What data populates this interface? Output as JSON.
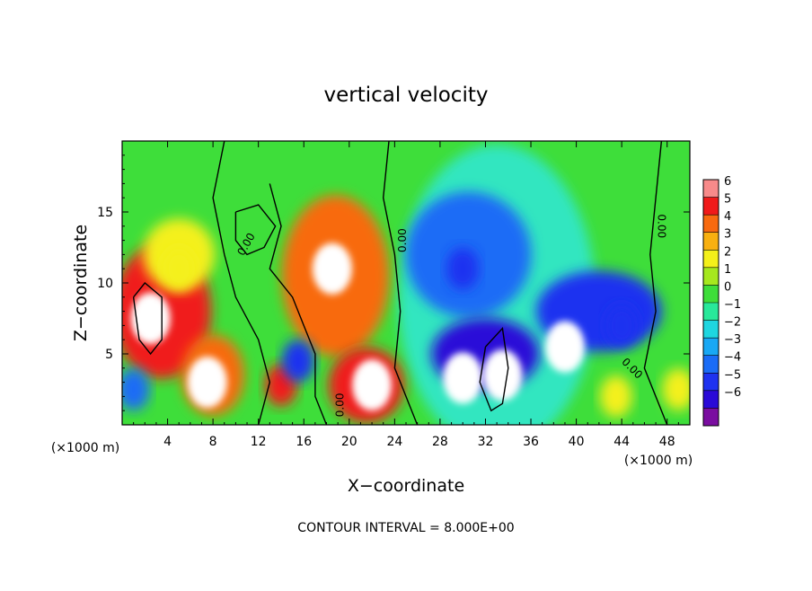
{
  "chart_data": {
    "type": "heatmap",
    "title": "vertical velocity",
    "xlabel": "X−coordinate",
    "ylabel": "Z−coordinate",
    "x_units": "(×1000 m)",
    "y_units": "(×1000 m)",
    "footer": "CONTOUR INTERVAL = 8.000E+00",
    "xlim": [
      0,
      50
    ],
    "ylim": [
      0,
      20
    ],
    "x_ticks": [
      4,
      8,
      12,
      16,
      20,
      24,
      28,
      32,
      36,
      40,
      44,
      48
    ],
    "x_tick_labels": [
      "4",
      "8",
      "12",
      "16",
      "20",
      "24",
      "28",
      "32",
      "36",
      "40",
      "44",
      "48"
    ],
    "y_ticks": [
      5,
      10,
      15
    ],
    "y_tick_labels": [
      "5",
      "10",
      "15"
    ],
    "colorbar": {
      "levels": [
        -6,
        -5,
        -4,
        -3,
        -2,
        -1,
        0,
        1,
        2,
        3,
        4,
        5,
        6
      ],
      "labels": [
        "6",
        "5",
        "4",
        "3",
        "2",
        "1",
        "0",
        "−1",
        "−2",
        "−3",
        "−4",
        "−5",
        "−6"
      ],
      "colors": [
        "#7a0da0",
        "#2a0ad8",
        "#1e32f0",
        "#1a6cf6",
        "#19a8f4",
        "#1ed6e0",
        "#28e89a",
        "#3ede3a",
        "#a6e81e",
        "#f4f01a",
        "#f8b010",
        "#f86a10",
        "#f01a1a",
        "#f88a8a"
      ]
    },
    "contour_label": "0.00",
    "features": [
      {
        "kind": "updraft",
        "x": 2.5,
        "z": 7.5,
        "value": 7
      },
      {
        "kind": "updraft",
        "x": 7.5,
        "z": 3.0,
        "value": 7
      },
      {
        "kind": "updraft",
        "x": 14.0,
        "z": 2.8,
        "value": 6
      },
      {
        "kind": "updraft",
        "x": 18.5,
        "z": 11.0,
        "value": 7
      },
      {
        "kind": "updraft",
        "x": 22.0,
        "z": 2.8,
        "value": 7
      },
      {
        "kind": "updraft",
        "x": 43.5,
        "z": 2.0,
        "value": 3
      },
      {
        "kind": "updraft",
        "x": 49.0,
        "z": 2.5,
        "value": 3
      },
      {
        "kind": "updraft",
        "x": 5.0,
        "z": 11.0,
        "value": 3
      },
      {
        "kind": "downdraft",
        "x": 30.0,
        "z": 11.0,
        "value": -4
      },
      {
        "kind": "downdraft",
        "x": 33.5,
        "z": 3.5,
        "value": -7
      },
      {
        "kind": "downdraft",
        "x": 30.0,
        "z": 3.3,
        "value": -7
      },
      {
        "kind": "downdraft",
        "x": 39.0,
        "z": 5.5,
        "value": -7
      },
      {
        "kind": "downdraft",
        "x": 44.0,
        "z": 7.0,
        "value": -4
      },
      {
        "kind": "downdraft",
        "x": 15.5,
        "z": 4.5,
        "value": -4
      },
      {
        "kind": "downdraft",
        "x": 1.0,
        "z": 2.5,
        "value": -3
      }
    ]
  }
}
